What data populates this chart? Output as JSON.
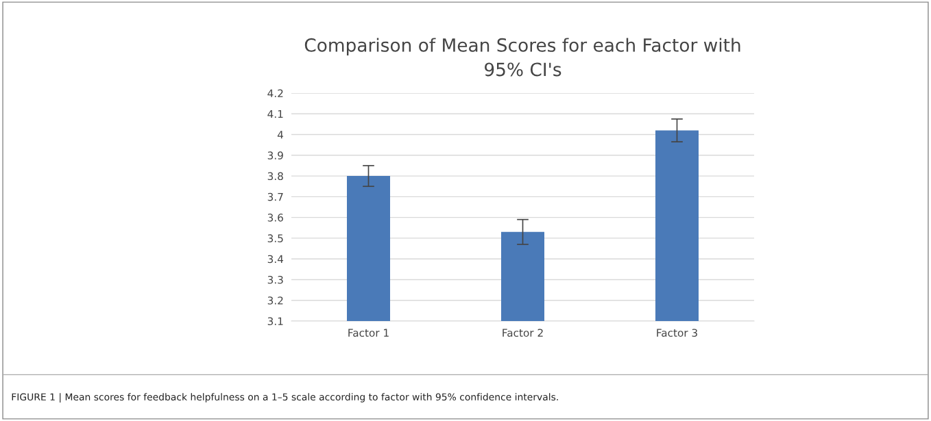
{
  "chart_data": {
    "type": "bar",
    "title": "Comparison of Mean Scores for each Factor with\n95% CI's",
    "categories": [
      "Factor 1",
      "Factor 2",
      "Factor 3"
    ],
    "values": [
      3.8,
      3.53,
      4.02
    ],
    "errors": [
      0.05,
      0.06,
      0.055
    ],
    "color": "#4a7ab8",
    "ylim": [
      3.1,
      4.2
    ],
    "yticks": [
      3.1,
      3.2,
      3.3,
      3.4,
      3.5,
      3.6,
      3.7,
      3.8,
      3.9,
      4,
      4.1,
      4.2
    ],
    "grid": "y",
    "annotations": [
      "FIGURE 1 | Mean scores for feedback helpfulness on a 1–5 scale according to factor with 95% confidence intervals."
    ]
  }
}
